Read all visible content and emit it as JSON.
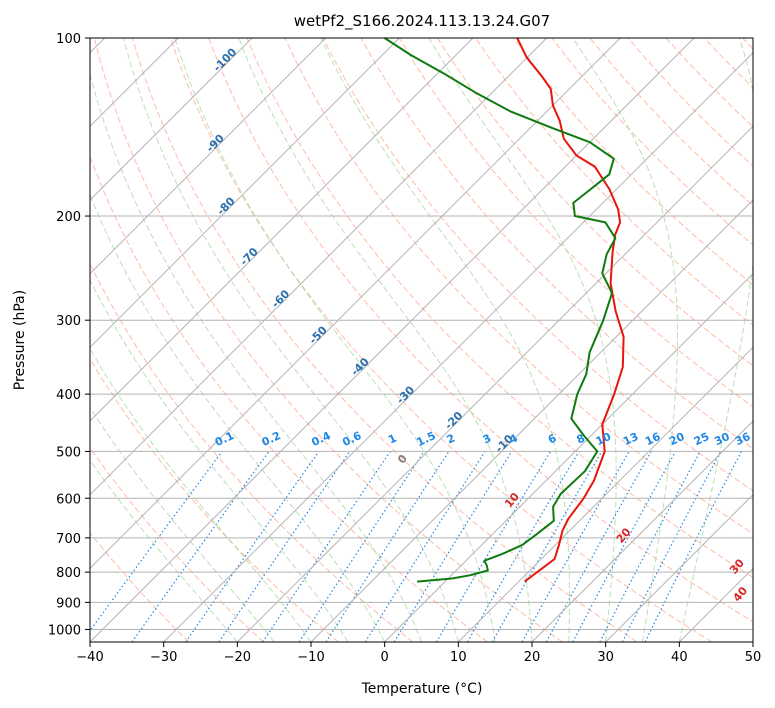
{
  "chart_data": {
    "type": "line",
    "subtype": "skew-t log-p diagram",
    "title": "wetPf2_S166.2024.113.13.24.G07",
    "xlabel": "Temperature (°C)",
    "ylabel": "Pressure (hPa)",
    "xlim": [
      -40,
      50
    ],
    "ylim": [
      1050,
      100
    ],
    "yscale": "log",
    "grid": true,
    "x_ticks": [
      -40,
      -30,
      -20,
      -10,
      0,
      10,
      20,
      30,
      40,
      50
    ],
    "y_ticks": [
      100,
      200,
      300,
      400,
      500,
      600,
      700,
      800,
      900,
      1000
    ],
    "series": [
      {
        "color": "#e8150b",
        "points": [
          [
            10.8,
            830
          ],
          [
            11.8,
            760
          ],
          [
            10.5,
            720
          ],
          [
            9.0,
            680
          ],
          [
            8.2,
            650
          ],
          [
            7.5,
            600
          ],
          [
            6.5,
            560
          ],
          [
            4.0,
            500
          ],
          [
            0.0,
            450
          ],
          [
            -2.5,
            400
          ],
          [
            -5.0,
            360
          ],
          [
            -9.0,
            320
          ],
          [
            -13.5,
            290
          ],
          [
            -18.0,
            260
          ],
          [
            -22.0,
            230
          ],
          [
            -24.0,
            215
          ],
          [
            -25.0,
            205
          ],
          [
            -27.0,
            195
          ],
          [
            -31.0,
            180
          ],
          [
            -36.0,
            165
          ],
          [
            -40.0,
            158
          ],
          [
            -44.0,
            148
          ],
          [
            -47.0,
            138
          ],
          [
            -50.0,
            130
          ],
          [
            -52.5,
            122
          ],
          [
            -55.5,
            116
          ],
          [
            -60.0,
            108
          ],
          [
            -64.0,
            100
          ]
        ]
      },
      {
        "color": "#0f7b0f",
        "points": [
          [
            -3.8,
            830
          ],
          [
            0.5,
            820
          ],
          [
            2.5,
            810
          ],
          [
            4.3,
            795
          ],
          [
            3.5,
            780
          ],
          [
            2.5,
            765
          ],
          [
            4.0,
            745
          ],
          [
            5.5,
            720
          ],
          [
            6.0,
            690
          ],
          [
            6.5,
            655
          ],
          [
            4.5,
            620
          ],
          [
            3.8,
            590
          ],
          [
            4.0,
            540
          ],
          [
            3.0,
            500
          ],
          [
            -1.0,
            470
          ],
          [
            -5.0,
            440
          ],
          [
            -7.5,
            400
          ],
          [
            -9.0,
            370
          ],
          [
            -11.5,
            340
          ],
          [
            -14.0,
            300
          ],
          [
            -16.5,
            270
          ],
          [
            -20.5,
            250
          ],
          [
            -22.5,
            232
          ],
          [
            -23.5,
            218
          ],
          [
            -27.0,
            205
          ],
          [
            -32.0,
            200
          ],
          [
            -34.0,
            190
          ],
          [
            -33.5,
            180
          ],
          [
            -33.0,
            170
          ],
          [
            -34.5,
            160
          ],
          [
            -40.0,
            150
          ],
          [
            -47.0,
            142
          ],
          [
            -55.0,
            133
          ],
          [
            -62.0,
            124
          ],
          [
            -69.0,
            115
          ],
          [
            -76.0,
            107
          ],
          [
            -82.0,
            100
          ]
        ]
      }
    ],
    "background_lines": {
      "isotherm_color": "#b3b3b3",
      "dry_adiabat_color": "#fda58a",
      "moist_adiabat_color": "#a9d8a6",
      "mixing_ratio_color": "#1f88e6",
      "wetbulb_color": "#d2b48c"
    },
    "labels": {
      "temperature_labels": [
        "-100",
        "-90",
        "-80",
        "-70",
        "-60",
        "-50",
        "-40",
        "-30",
        "-20",
        "-10"
      ],
      "temperature_label_color": "#2a6fad",
      "mixing_ratio_labels": [
        "0.1",
        "0.2",
        "0.4",
        "0.6",
        "1",
        "1.5",
        "2",
        "3",
        "4",
        "6",
        "8",
        "10",
        "13",
        "16",
        "20",
        "25",
        "30",
        "36"
      ],
      "mixing_ratio_label_color": "#1f88e6",
      "dry_labels": [
        "0",
        "10",
        "20",
        "30",
        "40"
      ],
      "dry_label_color_zero": "#808080",
      "dry_label_color": "#d62728"
    }
  }
}
